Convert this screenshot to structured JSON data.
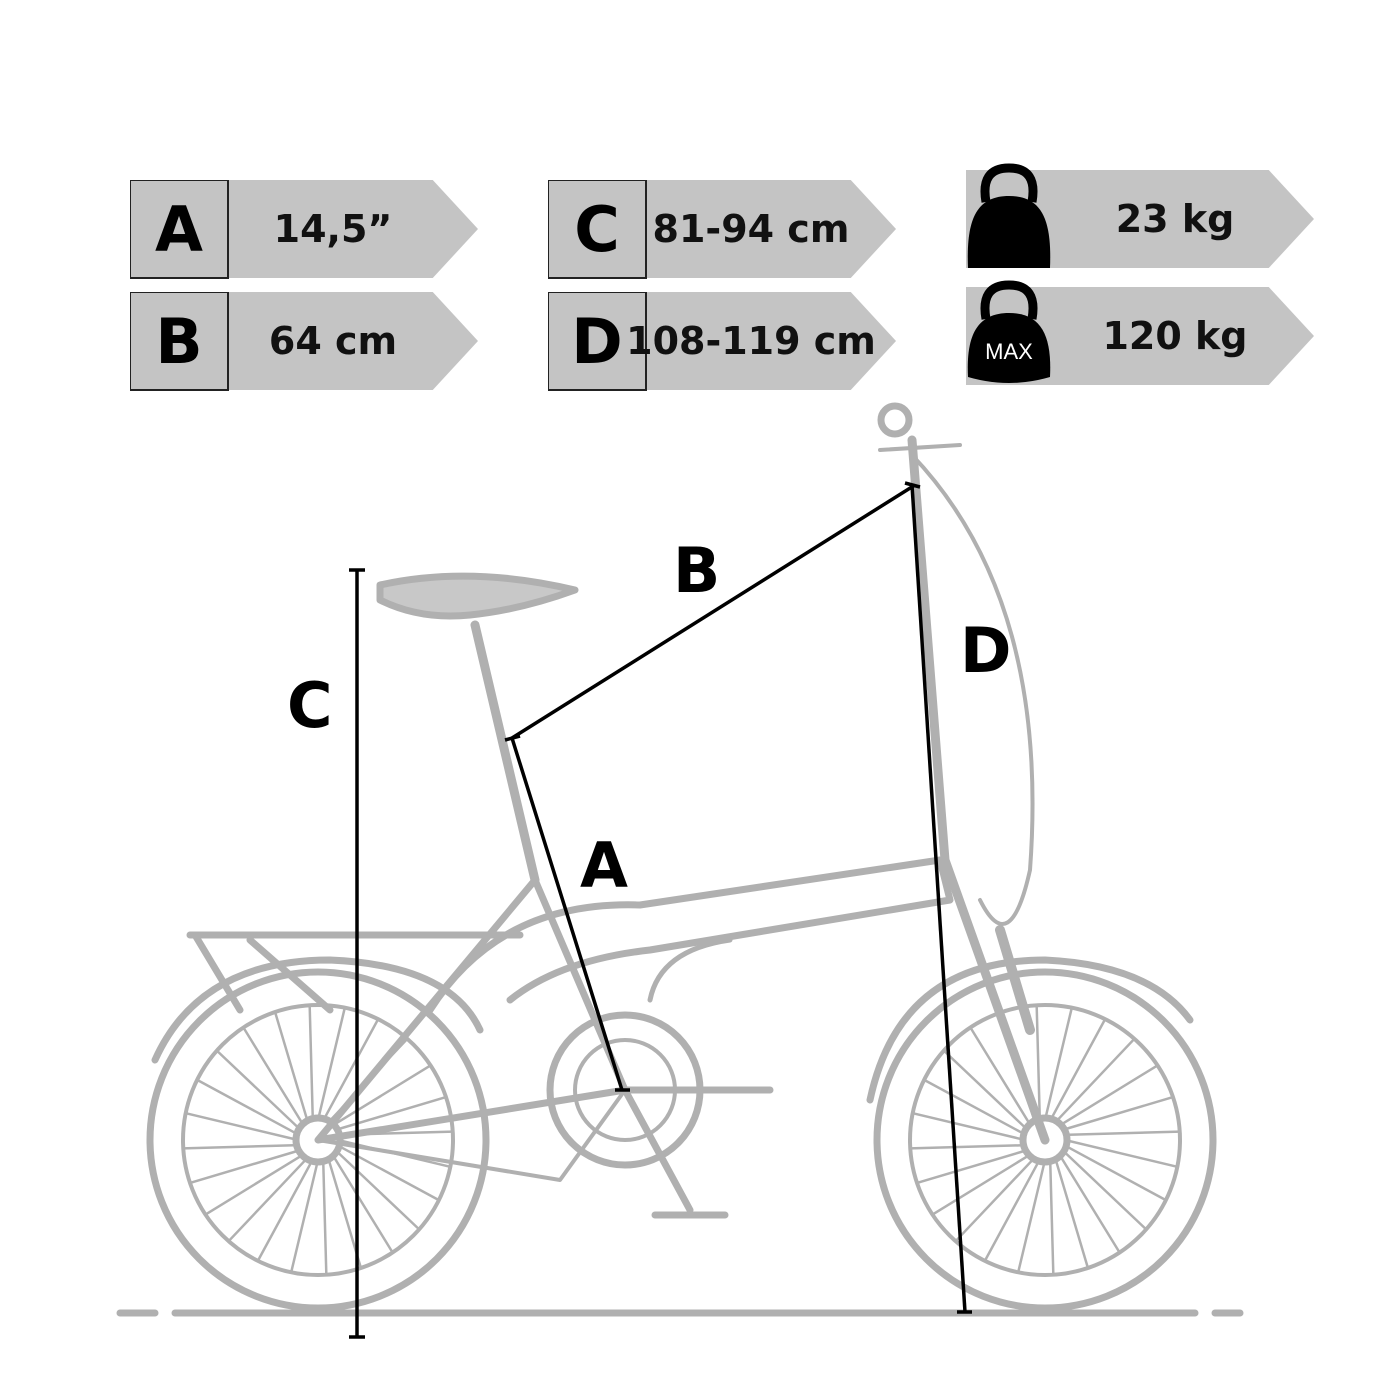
{
  "specs": [
    {
      "letter": "A",
      "value": "14,5”"
    },
    {
      "letter": "B",
      "value": "64 cm"
    },
    {
      "letter": "C",
      "value": "81-94 cm"
    },
    {
      "letter": "D",
      "value": "108-119 cm"
    }
  ],
  "weight": {
    "icon": "kettlebell-icon",
    "value": "23 kg"
  },
  "max_load": {
    "icon": "kettlebell-max-icon",
    "icon_text": "MAX",
    "value": "120 kg"
  },
  "diagram_labels": {
    "a": "A",
    "b": "B",
    "c": "C",
    "d": "D"
  },
  "colors": {
    "tag_bg": "#c4c4c4",
    "bike": "#b0b0b0",
    "measure": "#000000"
  }
}
